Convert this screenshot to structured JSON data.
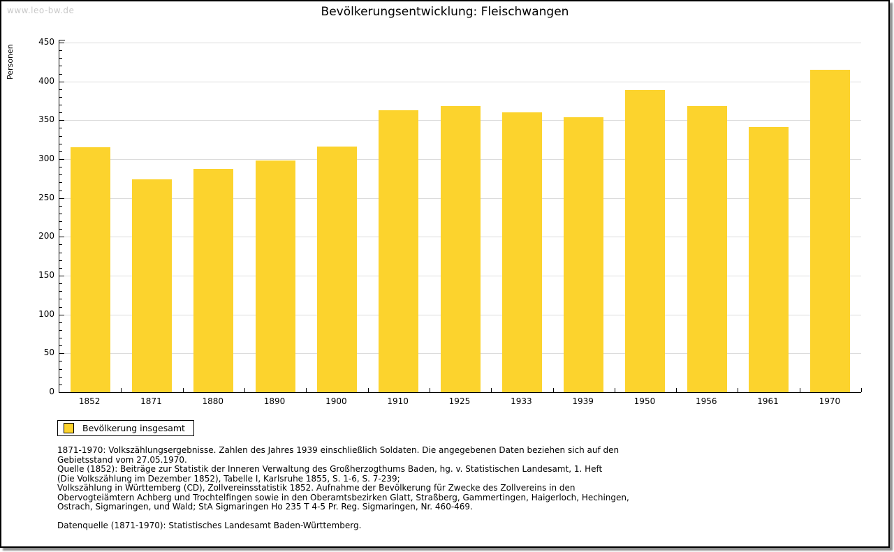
{
  "watermark": "www.leo-bw.de",
  "title": "Bevölkerungsentwicklung: Fleischwangen",
  "chart_data": {
    "type": "bar",
    "title": "Bevölkerungsentwicklung: Fleischwangen",
    "xlabel": "",
    "ylabel": "Personen",
    "categories": [
      "1852",
      "1871",
      "1880",
      "1890",
      "1900",
      "1910",
      "1925",
      "1933",
      "1939",
      "1950",
      "1956",
      "1961",
      "1970"
    ],
    "series": [
      {
        "name": "Bevölkerung insgesamt",
        "values": [
          315,
          274,
          287,
          298,
          316,
          363,
          368,
          360,
          354,
          389,
          368,
          341,
          415
        ]
      }
    ],
    "ylim": [
      0,
      450
    ],
    "ytick_step": 50,
    "minor_tick_step": 10,
    "grid": true,
    "legend_position": "bottom-left",
    "bar_color": "#fcd32d",
    "gridline_color": "#dcdcdc"
  },
  "legend": {
    "label": "Bevölkerung insgesamt",
    "swatch_color": "#fcd32d"
  },
  "footnotes": {
    "lines": [
      "1871-1970: Volkszählungsergebnisse. Zahlen des Jahres 1939 einschließlich Soldaten. Die angegebenen Daten beziehen sich auf den",
      "Gebietsstand vom 27.05.1970.",
      "Quelle (1852): Beiträge zur Statistik der Inneren Verwaltung des Großherzogthums Baden, hg. v. Statistischen Landesamt, 1. Heft",
      "(Die Volkszählung im Dezember 1852), Tabelle I, Karlsruhe 1855, S. 1-6, S. 7-239;",
      "Volkszählung in Württemberg (CD), Zollvereinsstatistik 1852. Aufnahme der Bevölkerung für Zwecke des Zollvereins in den",
      "Obervogteiämtern Achberg und Trochtelfingen sowie in den Oberamtsbezirken Glatt, Straßberg, Gammertingen, Haigerloch, Hechingen,",
      "Ostrach, Sigmaringen, und Wald; StA Sigmaringen Ho 235 T 4-5 Pr. Reg. Sigmaringen, Nr. 460-469."
    ],
    "datasource": "Datenquelle (1871-1970): Statistisches Landesamt Baden-Württemberg."
  },
  "colors": {
    "bar": "#fcd32d",
    "gridline": "#dcdcdc",
    "watermark": "#c9c9c9",
    "page_border": "#000000"
  }
}
